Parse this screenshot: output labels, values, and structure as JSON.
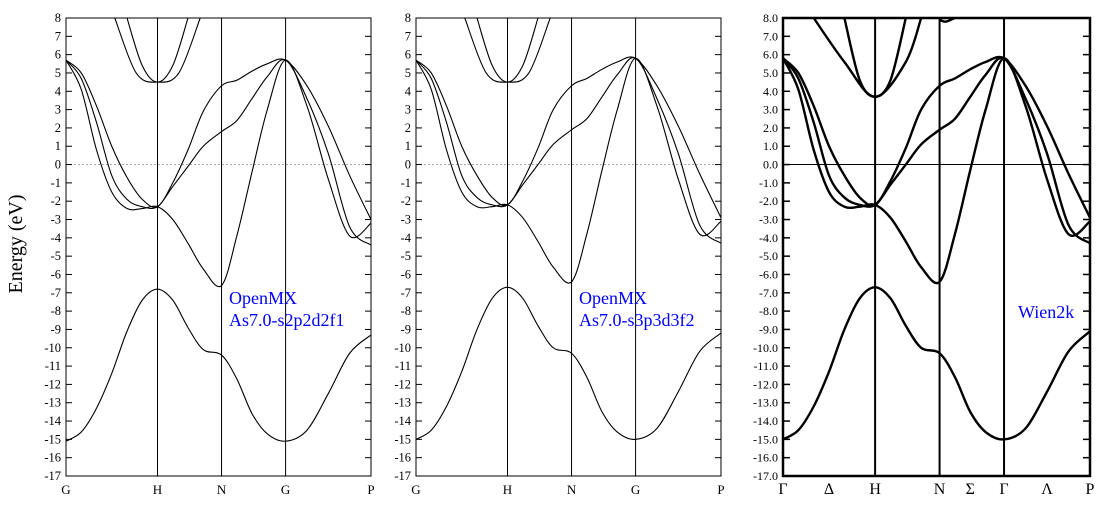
{
  "figure": {
    "ylabel": "Energy (eV)"
  },
  "chart_data": [
    {
      "type": "line",
      "annotation": [
        "OpenMX",
        "As7.0-s2p2d2f1"
      ],
      "annotation_color": "#0000ff",
      "ylim": [
        -17,
        8
      ],
      "y_ticks": [
        "-17",
        "-16",
        "-15",
        "-14",
        "-13",
        "-12",
        "-11",
        "-10",
        "-9",
        "-8",
        "-7",
        "-6",
        "-5",
        "-4",
        "-3",
        "-2",
        "-1",
        "0",
        "1",
        "2",
        "3",
        "4",
        "5",
        "6",
        "7",
        "8"
      ],
      "x_ticks": [
        "G",
        "H",
        "N",
        "G",
        "P"
      ],
      "kpath": [
        0,
        0.3,
        0.51,
        0.72,
        1.0
      ],
      "fermi_level": 0,
      "fermi_style": "dotted",
      "series": [
        {
          "x": [
            0,
            0.05,
            0.1,
            0.15,
            0.2,
            0.25,
            0.3,
            0.35,
            0.4,
            0.45,
            0.51,
            0.56,
            0.61,
            0.66,
            0.72,
            0.79,
            0.86,
            0.93,
            1.0
          ],
          "y": [
            -15.1,
            -14.6,
            -13.3,
            -11.4,
            -9.1,
            -7.4,
            -6.8,
            -7.4,
            -8.9,
            -10.1,
            -10.4,
            -11.7,
            -13.6,
            -14.7,
            -15.1,
            -14.5,
            -12.5,
            -10.3,
            -9.3
          ]
        },
        {
          "x": [
            0,
            0.05,
            0.1,
            0.15,
            0.2,
            0.25,
            0.3,
            0.35,
            0.4,
            0.45,
            0.51,
            0.56,
            0.61,
            0.66,
            0.72,
            0.79,
            0.86,
            0.93,
            1.0
          ],
          "y": [
            5.7,
            4.1,
            0.8,
            -1.5,
            -2.4,
            -2.4,
            -2.3,
            -3.0,
            -4.3,
            -5.7,
            -6.6,
            -3.9,
            -0.4,
            3.0,
            5.7,
            3.2,
            -0.8,
            -3.9,
            -3.2
          ]
        },
        {
          "x": [
            0,
            0.05,
            0.1,
            0.15,
            0.2,
            0.25,
            0.3,
            0.35,
            0.4,
            0.45,
            0.51,
            0.56,
            0.61,
            0.66,
            0.72,
            0.79,
            0.86,
            0.93,
            1.0
          ],
          "y": [
            5.7,
            4.7,
            2.3,
            -0.6,
            -1.9,
            -2.3,
            -2.3,
            -1.2,
            -0.1,
            1.0,
            1.8,
            2.4,
            3.6,
            4.8,
            5.7,
            3.6,
            0.6,
            -3.4,
            -4.4
          ]
        },
        {
          "x": [
            0,
            0.05,
            0.1,
            0.15,
            0.2,
            0.25,
            0.3,
            0.35,
            0.4,
            0.45,
            0.51,
            0.56,
            0.61,
            0.66,
            0.72,
            0.79,
            0.86,
            0.93,
            1.0
          ],
          "y": [
            5.7,
            5.0,
            3.2,
            1.0,
            -0.7,
            -1.9,
            -2.3,
            -1.0,
            0.8,
            2.9,
            4.3,
            4.6,
            5.1,
            5.5,
            5.7,
            4.3,
            2.1,
            -0.6,
            -3.0
          ]
        },
        {
          "x": [
            0.2,
            0.25,
            0.3,
            0.35,
            0.4
          ],
          "y": [
            8.0,
            5.4,
            4.5,
            5.4,
            8.0
          ]
        },
        {
          "x": [
            0.16,
            0.23,
            0.3,
            0.37,
            0.44
          ],
          "y": [
            8.0,
            5.0,
            4.5,
            5.0,
            8.0
          ]
        }
      ]
    },
    {
      "type": "line",
      "annotation": [
        "OpenMX",
        "As7.0-s3p3d3f2"
      ],
      "annotation_color": "#0000ff",
      "ylim": [
        -17,
        8
      ],
      "y_ticks": [
        "-17",
        "-16",
        "-15",
        "-14",
        "-13",
        "-12",
        "-11",
        "-10",
        "-9",
        "-8",
        "-7",
        "-6",
        "-5",
        "-4",
        "-3",
        "-2",
        "-1",
        "0",
        "1",
        "2",
        "3",
        "4",
        "5",
        "6",
        "7",
        "8"
      ],
      "x_ticks": [
        "G",
        "H",
        "N",
        "G",
        "P"
      ],
      "kpath": [
        0,
        0.3,
        0.51,
        0.72,
        1.0
      ],
      "fermi_level": 0,
      "fermi_style": "dotted",
      "series": [
        {
          "x": [
            0,
            0.05,
            0.1,
            0.15,
            0.2,
            0.25,
            0.3,
            0.35,
            0.4,
            0.45,
            0.51,
            0.56,
            0.61,
            0.66,
            0.72,
            0.79,
            0.86,
            0.93,
            1.0
          ],
          "y": [
            -15.0,
            -14.5,
            -13.2,
            -11.3,
            -9.0,
            -7.3,
            -6.7,
            -7.3,
            -8.8,
            -10.0,
            -10.3,
            -11.6,
            -13.5,
            -14.6,
            -15.0,
            -14.4,
            -12.4,
            -10.2,
            -9.2
          ]
        },
        {
          "x": [
            0,
            0.05,
            0.1,
            0.15,
            0.2,
            0.25,
            0.3,
            0.35,
            0.4,
            0.45,
            0.51,
            0.56,
            0.61,
            0.66,
            0.72,
            0.79,
            0.86,
            0.93,
            1.0
          ],
          "y": [
            5.7,
            4.1,
            0.8,
            -1.5,
            -2.3,
            -2.3,
            -2.2,
            -2.9,
            -4.2,
            -5.6,
            -6.4,
            -3.8,
            -0.3,
            3.0,
            5.8,
            3.2,
            -0.8,
            -3.8,
            -3.1
          ]
        },
        {
          "x": [
            0,
            0.05,
            0.1,
            0.15,
            0.2,
            0.25,
            0.3,
            0.35,
            0.4,
            0.45,
            0.51,
            0.56,
            0.61,
            0.66,
            0.72,
            0.79,
            0.86,
            0.93,
            1.0
          ],
          "y": [
            5.7,
            4.7,
            2.3,
            -0.6,
            -1.8,
            -2.2,
            -2.2,
            -1.1,
            0.0,
            1.1,
            1.9,
            2.5,
            3.7,
            4.9,
            5.8,
            3.6,
            0.6,
            -3.3,
            -4.3
          ]
        },
        {
          "x": [
            0,
            0.05,
            0.1,
            0.15,
            0.2,
            0.25,
            0.3,
            0.35,
            0.4,
            0.45,
            0.51,
            0.56,
            0.61,
            0.66,
            0.72,
            0.79,
            0.86,
            0.93,
            1.0
          ],
          "y": [
            5.7,
            5.0,
            3.2,
            1.0,
            -0.6,
            -1.8,
            -2.2,
            -0.9,
            0.9,
            3.0,
            4.3,
            4.7,
            5.2,
            5.6,
            5.8,
            4.3,
            2.1,
            -0.5,
            -2.9
          ]
        },
        {
          "x": [
            0.2,
            0.25,
            0.3,
            0.35,
            0.4
          ],
          "y": [
            8.0,
            5.4,
            4.5,
            5.4,
            8.0
          ]
        },
        {
          "x": [
            0.16,
            0.23,
            0.3,
            0.37,
            0.44
          ],
          "y": [
            8.0,
            5.0,
            4.5,
            5.0,
            8.0
          ]
        }
      ]
    },
    {
      "type": "line",
      "annotation": [
        "Wien2k"
      ],
      "annotation_color": "#0000ff",
      "ylim": [
        -17,
        8
      ],
      "y_ticks": [
        "-17.0",
        "-16.0",
        "-15.0",
        "-14.0",
        "-13.0",
        "-12.0",
        "-11.0",
        "-10.0",
        "-9.0",
        "-8.0",
        "-7.0",
        "-6.0",
        "-5.0",
        "-4.0",
        "-3.0",
        "-2.0",
        "-1.0",
        "0.0",
        "1.0",
        "2.0",
        "3.0",
        "4.0",
        "5.0",
        "6.0",
        "7.0",
        "8.0"
      ],
      "x_ticks": [
        "Γ",
        "Δ",
        "H",
        "N",
        "Σ",
        "Γ",
        "Λ",
        "P"
      ],
      "kpath": [
        0,
        0.15,
        0.3,
        0.51,
        0.61,
        0.72,
        0.86,
        1.0
      ],
      "kpath_lines": [
        0.3,
        0.51,
        0.72
      ],
      "fermi_level": 0,
      "fermi_style": "solid",
      "frame": "bold",
      "series": [
        {
          "x": [
            0,
            0.05,
            0.1,
            0.15,
            0.2,
            0.25,
            0.3,
            0.35,
            0.4,
            0.45,
            0.51,
            0.56,
            0.61,
            0.66,
            0.72,
            0.79,
            0.86,
            0.93,
            1.0
          ],
          "y": [
            -15.0,
            -14.5,
            -13.2,
            -11.3,
            -9.0,
            -7.3,
            -6.7,
            -7.3,
            -8.8,
            -10.0,
            -10.3,
            -11.6,
            -13.5,
            -14.6,
            -15.0,
            -14.4,
            -12.4,
            -10.2,
            -9.1
          ]
        },
        {
          "x": [
            0,
            0.05,
            0.1,
            0.15,
            0.2,
            0.25,
            0.3,
            0.35,
            0.4,
            0.45,
            0.51,
            0.56,
            0.61,
            0.66,
            0.72,
            0.79,
            0.86,
            0.93,
            1.0
          ],
          "y": [
            5.8,
            4.1,
            0.8,
            -1.5,
            -2.3,
            -2.3,
            -2.2,
            -2.9,
            -4.2,
            -5.6,
            -6.4,
            -3.8,
            -0.3,
            3.0,
            5.8,
            3.2,
            -0.8,
            -3.8,
            -3.1
          ]
        },
        {
          "x": [
            0,
            0.05,
            0.1,
            0.15,
            0.2,
            0.25,
            0.3,
            0.35,
            0.4,
            0.45,
            0.51,
            0.56,
            0.61,
            0.66,
            0.72,
            0.79,
            0.86,
            0.93,
            1.0
          ],
          "y": [
            5.8,
            4.7,
            2.3,
            -0.6,
            -1.8,
            -2.2,
            -2.2,
            -1.1,
            0.0,
            1.1,
            1.9,
            2.5,
            3.7,
            4.9,
            5.8,
            3.6,
            0.6,
            -3.3,
            -4.3
          ]
        },
        {
          "x": [
            0,
            0.05,
            0.1,
            0.15,
            0.2,
            0.25,
            0.3,
            0.35,
            0.4,
            0.45,
            0.51,
            0.56,
            0.61,
            0.66,
            0.72,
            0.79,
            0.86,
            0.93,
            1.0
          ],
          "y": [
            5.8,
            5.0,
            3.2,
            1.0,
            -0.6,
            -1.8,
            -2.2,
            -0.9,
            0.9,
            3.0,
            4.3,
            4.7,
            5.2,
            5.6,
            5.8,
            4.3,
            2.1,
            -0.5,
            -2.9
          ]
        },
        {
          "x": [
            0.2,
            0.25,
            0.3,
            0.35,
            0.4
          ],
          "y": [
            8.0,
            4.6,
            3.7,
            4.6,
            8.0
          ]
        },
        {
          "x": [
            0.1,
            0.2,
            0.3,
            0.4,
            0.45
          ],
          "y": [
            8.0,
            5.6,
            3.7,
            5.6,
            8.0
          ]
        },
        {
          "x": [
            0.51,
            0.53,
            0.56
          ],
          "y": [
            7.9,
            7.8,
            8.0
          ]
        }
      ]
    }
  ]
}
